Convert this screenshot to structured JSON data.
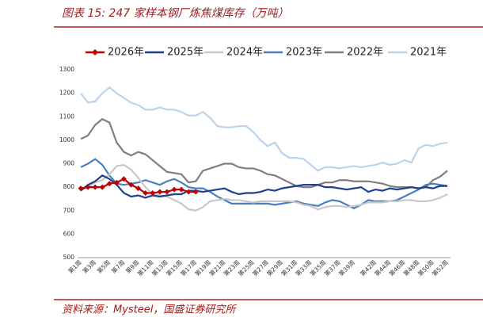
{
  "chart_data": {
    "type": "line",
    "title": "图表 15:  247 家样本钢厂炼焦煤库存（万吨）",
    "source": "资料来源：Mysteel，国盛证券研究所",
    "categories": [
      "第1周",
      null,
      "第3周",
      null,
      "第5周",
      null,
      "第7周",
      null,
      "第9周",
      null,
      "第11周",
      null,
      "第13周",
      null,
      "第15周",
      null,
      "第17周",
      null,
      "第19周",
      null,
      "第21周",
      null,
      "第23周",
      null,
      "第25周",
      null,
      "第27周",
      null,
      "第29周",
      null,
      "第31周",
      null,
      "第33周",
      null,
      "第35周",
      null,
      "第37周",
      null,
      "第39周",
      null,
      null,
      "第42周",
      null,
      "第44周",
      null,
      "第46周",
      null,
      "第48周",
      null,
      "第50周",
      null,
      "第52周"
    ],
    "ylim": [
      500,
      1300
    ],
    "yticks": [
      500,
      600,
      700,
      800,
      900,
      1000,
      1100,
      1200,
      1300
    ],
    "series": [
      {
        "name": "2026年",
        "color": "#c00000",
        "marker": "diamond",
        "values": [
          795,
          800,
          800,
          800,
          815,
          820,
          835,
          810,
          795,
          775,
          775,
          780,
          780,
          790,
          790,
          780,
          780,
          null,
          null,
          null,
          null,
          null,
          null,
          null,
          null,
          null,
          null,
          null,
          null,
          null,
          null,
          null,
          null,
          null,
          null,
          null,
          null,
          null,
          null,
          null,
          null,
          null,
          null,
          null,
          null,
          null,
          null,
          null,
          null,
          null,
          null,
          null
        ]
      },
      {
        "name": "2025年",
        "color": "#1f3f8f",
        "values": [
          785,
          810,
          825,
          850,
          835,
          810,
          775,
          760,
          765,
          755,
          765,
          760,
          765,
          770,
          770,
          785,
          785,
          780,
          785,
          790,
          795,
          780,
          770,
          775,
          775,
          780,
          790,
          785,
          795,
          800,
          805,
          810,
          810,
          810,
          800,
          800,
          795,
          790,
          795,
          800,
          780,
          790,
          785,
          795,
          790,
          795,
          800,
          795,
          800,
          795,
          805,
          805
        ]
      },
      {
        "name": "2024年",
        "color": "#c8c8c8",
        "values": [
          790,
          800,
          820,
          830,
          855,
          890,
          895,
          875,
          840,
          800,
          770,
          765,
          760,
          745,
          730,
          705,
          700,
          715,
          740,
          745,
          750,
          745,
          745,
          740,
          735,
          740,
          740,
          740,
          740,
          740,
          735,
          725,
          720,
          705,
          715,
          720,
          720,
          715,
          720,
          725,
          735,
          735,
          735,
          740,
          740,
          745,
          745,
          740,
          740,
          745,
          755,
          770
        ]
      },
      {
        "name": "2023年",
        "color": "#4a7fc1",
        "values": [
          885,
          900,
          920,
          895,
          850,
          815,
          810,
          815,
          820,
          830,
          820,
          810,
          825,
          835,
          820,
          800,
          795,
          795,
          780,
          760,
          745,
          730,
          730,
          730,
          730,
          730,
          730,
          725,
          730,
          735,
          740,
          730,
          725,
          720,
          735,
          745,
          740,
          725,
          710,
          725,
          745,
          740,
          740,
          740,
          745,
          760,
          775,
          790,
          810,
          815,
          810,
          805
        ]
      },
      {
        "name": "2022年",
        "color": "#7f7f7f",
        "values": [
          1005,
          1020,
          1065,
          1090,
          1075,
          990,
          950,
          935,
          950,
          940,
          915,
          890,
          865,
          860,
          855,
          820,
          825,
          870,
          880,
          890,
          900,
          900,
          885,
          880,
          880,
          870,
          855,
          850,
          835,
          820,
          805,
          800,
          800,
          810,
          820,
          820,
          830,
          830,
          825,
          825,
          825,
          820,
          815,
          805,
          800,
          800,
          800,
          795,
          800,
          830,
          845,
          870
        ]
      },
      {
        "name": "2021年",
        "color": "#bcd3ec",
        "values": [
          1200,
          1160,
          1165,
          1200,
          1225,
          1200,
          1180,
          1160,
          1150,
          1130,
          1130,
          1140,
          1130,
          1130,
          1120,
          1105,
          1105,
          1120,
          1095,
          1060,
          1055,
          1055,
          1060,
          1060,
          1035,
          1000,
          975,
          990,
          945,
          925,
          925,
          920,
          895,
          870,
          885,
          885,
          880,
          885,
          890,
          885,
          890,
          895,
          905,
          895,
          900,
          915,
          905,
          965,
          980,
          975,
          985,
          990
        ]
      }
    ]
  }
}
